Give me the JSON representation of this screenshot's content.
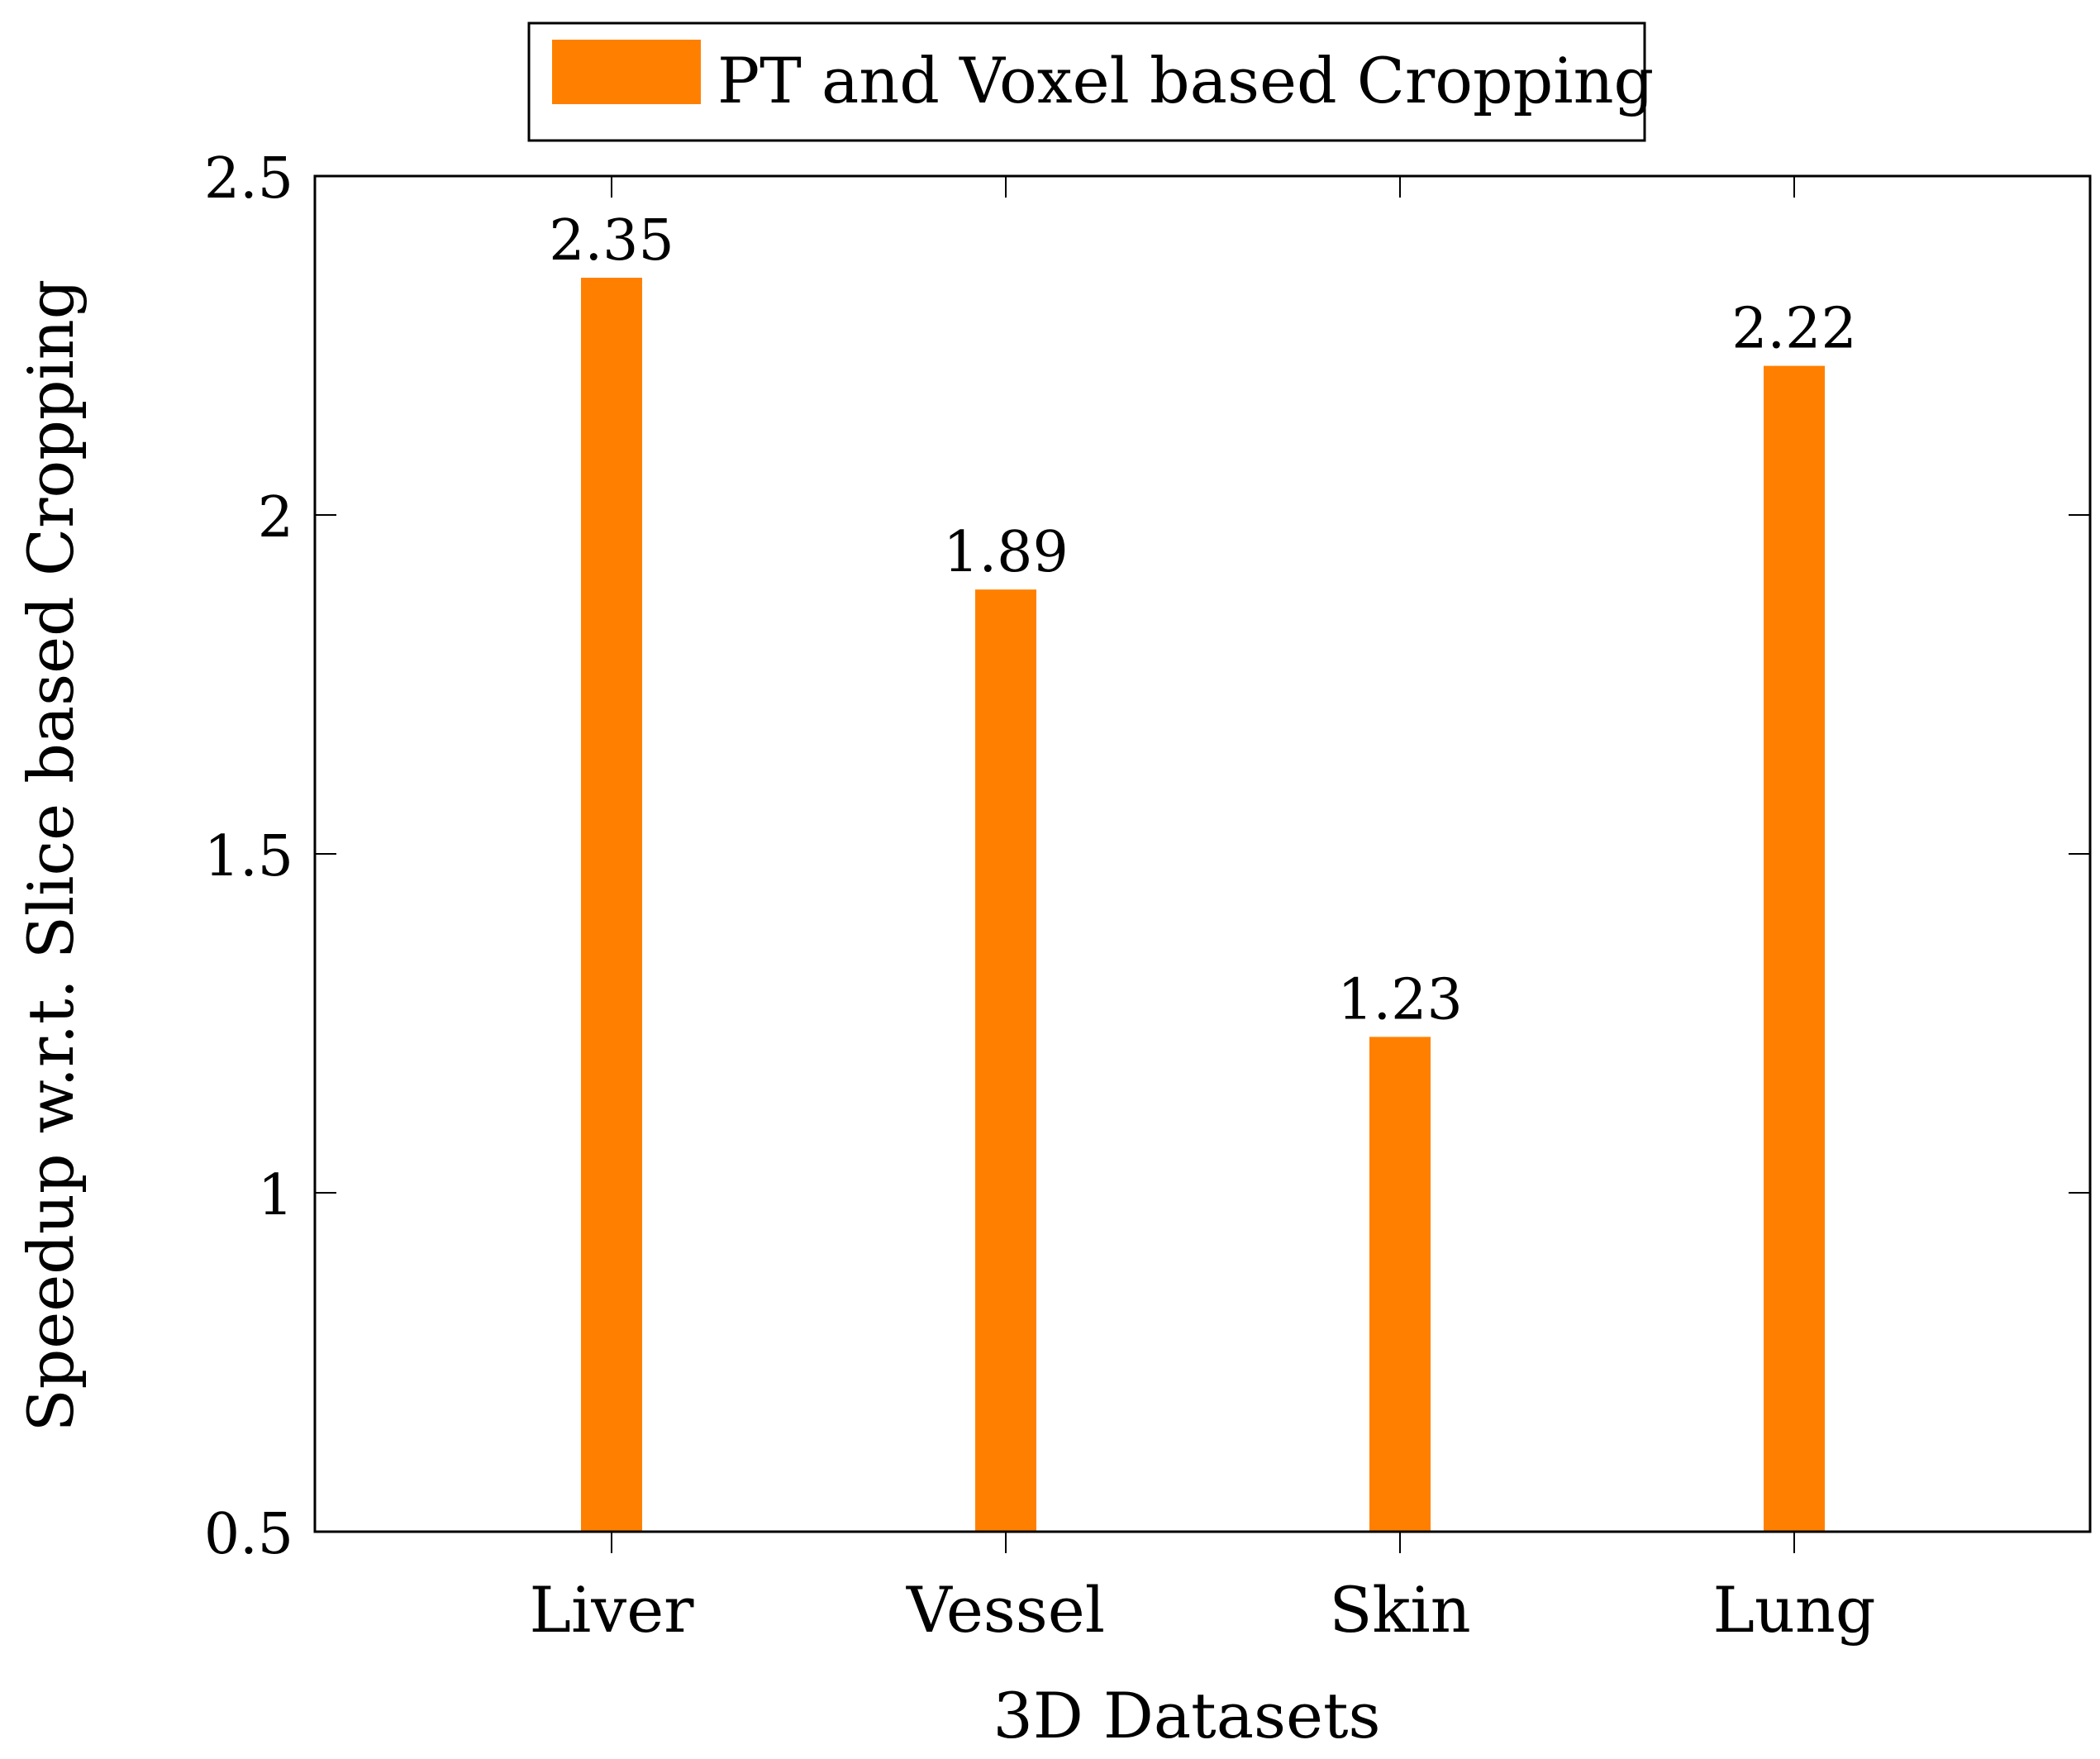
{
  "chart_data": {
    "type": "bar",
    "title": "",
    "xlabel": "3D Datasets",
    "ylabel": "Speedup w.r.t. Slice based Cropping",
    "categories": [
      "Liver",
      "Vessel",
      "Skin",
      "Lung"
    ],
    "series": [
      {
        "name": "PT and Voxel based Cropping",
        "values": [
          2.35,
          1.89,
          1.23,
          2.22
        ],
        "color": "#ff8000"
      }
    ],
    "data_labels": [
      "2.35",
      "1.89",
      "1.23",
      "2.22"
    ],
    "ylim": [
      0.5,
      2.5
    ],
    "yticks": [
      0.5,
      1,
      1.5,
      2,
      2.5
    ],
    "ytick_labels": [
      "0.5",
      "1",
      "1.5",
      "2",
      "2.5"
    ],
    "grid": false,
    "legend_position": "top-center"
  }
}
